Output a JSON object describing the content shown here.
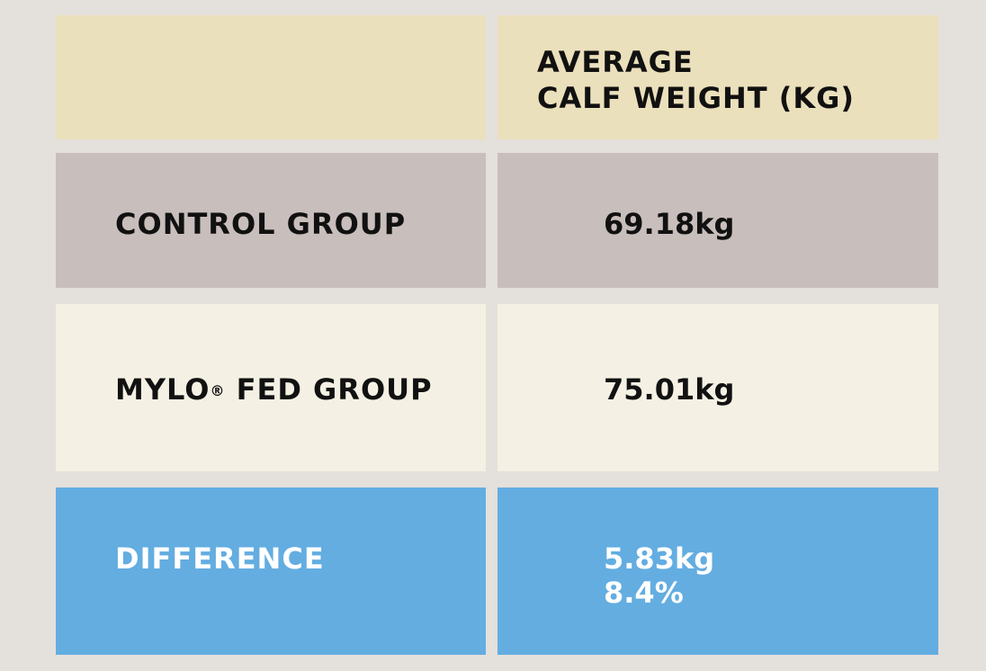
{
  "chart_data": {
    "type": "table",
    "header": {
      "left": "",
      "right_line1": "AVERAGE",
      "right_line2": "CALF WEIGHT (KG)"
    },
    "rows": [
      {
        "label": "CONTROL GROUP",
        "value": "69.18kg"
      },
      {
        "label_prefix": "MYLO",
        "label_mark": "®",
        "label_suffix": " FED GROUP",
        "value": "75.01kg"
      },
      {
        "label": "DIFFERENCE",
        "value_line1": "5.83kg",
        "value_line2": "8.4%"
      }
    ],
    "colors": {
      "background": "#e4e0dc",
      "header": "#ebe0bc",
      "control": "#c8bebb",
      "mylo": "#f4f1e4",
      "difference": "#63ade1",
      "difference_text": "#ffffff",
      "text": "#111111"
    }
  }
}
